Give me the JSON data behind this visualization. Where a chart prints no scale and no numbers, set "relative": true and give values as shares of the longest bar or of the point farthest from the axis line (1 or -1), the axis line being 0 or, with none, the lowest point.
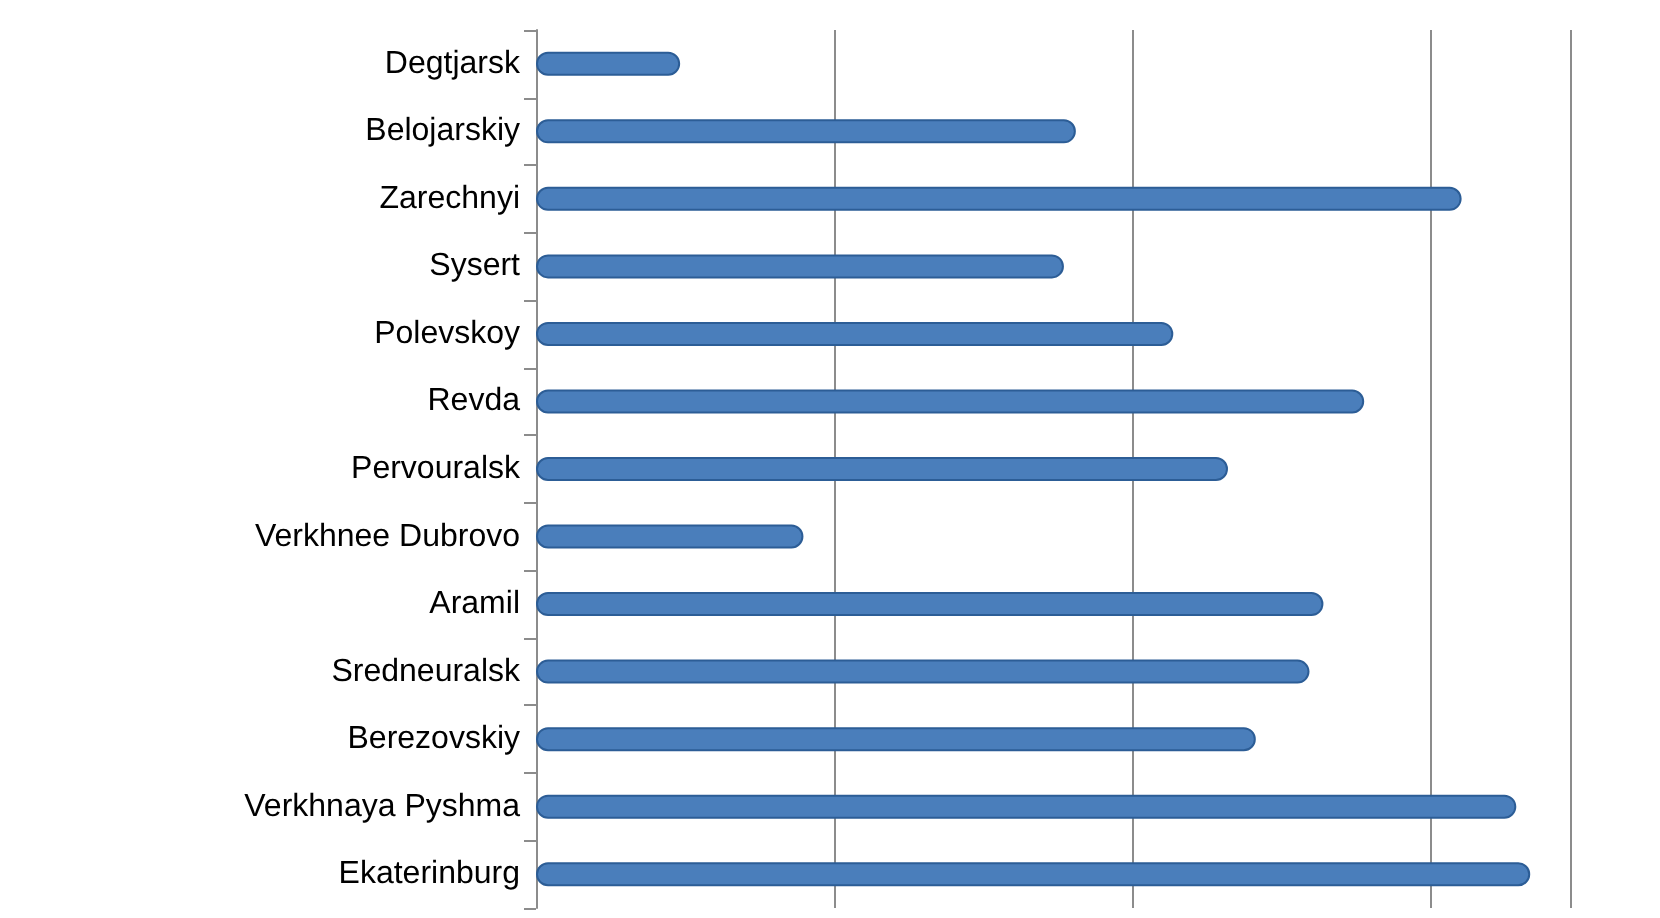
{
  "chart_data": {
    "type": "bar",
    "orientation": "horizontal",
    "relative": true,
    "grid": "x",
    "color": "#4a7ebb",
    "categories": [
      "Degtjarsk",
      "Belojarskiy",
      "Zarechnyi",
      "Sysert",
      "Polevskoy",
      "Revda",
      "Pervouralsk",
      "Verkhnee Dubrovo",
      "Aramil",
      "Sredneuralsk",
      "Berezovskiy",
      "Verkhnaya Pyshma",
      "Ekaterinburg"
    ],
    "values": [
      0.145,
      0.543,
      0.931,
      0.531,
      0.641,
      0.833,
      0.696,
      0.269,
      0.792,
      0.778,
      0.724,
      0.986,
      1
    ]
  }
}
